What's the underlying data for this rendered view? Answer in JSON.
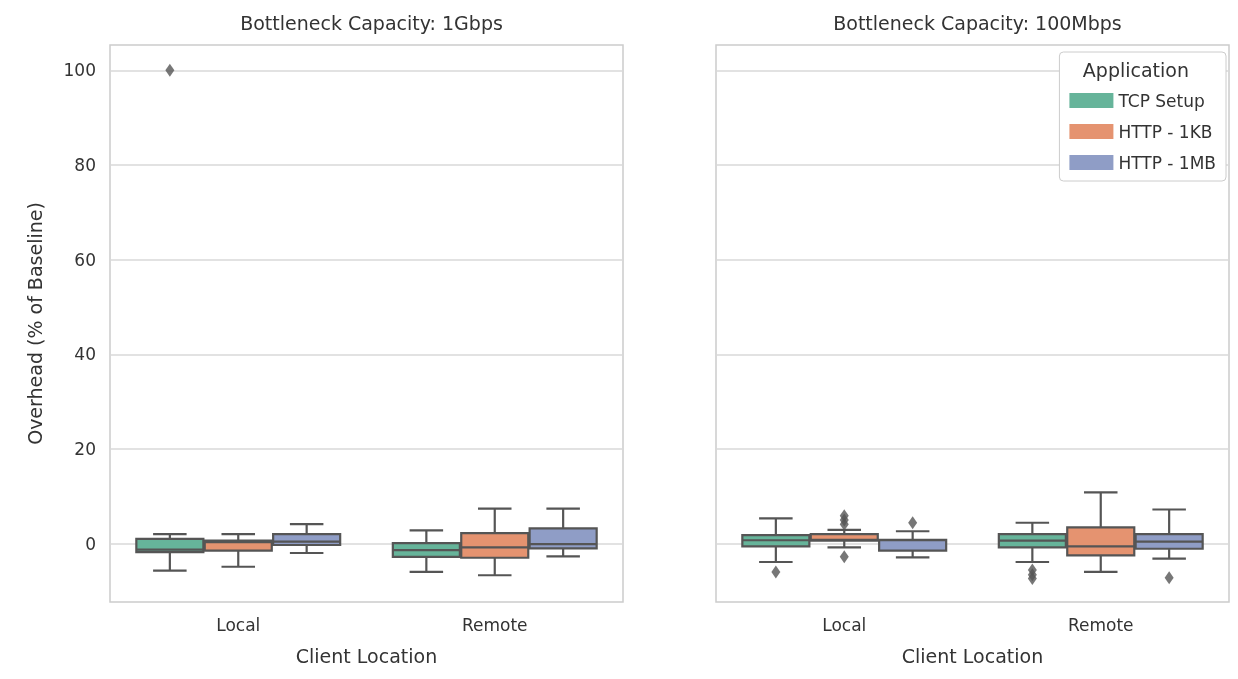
{
  "chart_data": [
    {
      "type": "box",
      "title": "Bottleneck Capacity: 1Gbps",
      "xlabel": "Client Location",
      "ylabel": "Overhead (% of Baseline)",
      "categories": [
        "Local",
        "Remote"
      ],
      "ylim": [
        -12.35,
        105.35
      ],
      "yticks": [
        0,
        20,
        40,
        60,
        80,
        100
      ],
      "grid": "y",
      "marker": "diamond",
      "series": [
        {
          "color": "#66b49a",
          "boxes": [
            {
              "low": -5.7,
              "q1": -1.8,
              "median": -1.3,
              "q3": 1.0,
              "high": 2.0,
              "outliers": [
                100
              ]
            },
            {
              "low": -6.0,
              "q1": -2.8,
              "median": -1.4,
              "q3": 0.1,
              "high": 2.8
            }
          ]
        },
        {
          "color": "#e59370",
          "boxes": [
            {
              "low": -4.9,
              "q1": -1.5,
              "median": 0.3,
              "q3": 0.6,
              "high": 2.0
            },
            {
              "low": -6.7,
              "q1": -3.0,
              "median": -0.8,
              "q3": 2.2,
              "high": 7.4
            }
          ]
        },
        {
          "color": "#8f9dc6",
          "boxes": [
            {
              "low": -2.0,
              "q1": -0.3,
              "median": 0.4,
              "q3": 2.0,
              "high": 4.1
            },
            {
              "low": -2.7,
              "q1": -1.0,
              "median": -0.1,
              "q3": 3.2,
              "high": 7.4
            }
          ]
        }
      ]
    },
    {
      "type": "box",
      "title": "Bottleneck Capacity: 100Mbps",
      "xlabel": "Client Location",
      "categories": [
        "Local",
        "Remote"
      ],
      "ylim": [
        -12.35,
        105.35
      ],
      "yticks": [
        0,
        20,
        40,
        60,
        80,
        100
      ],
      "grid": "y",
      "marker": "diamond",
      "tick_labels": "x",
      "legend": "top right",
      "legend_title": "Application",
      "series": [
        {
          "name": "TCP Setup",
          "color": "#66b49a",
          "boxes": [
            {
              "low": -3.9,
              "q1": -0.6,
              "median": 0.7,
              "q3": 1.8,
              "high": 5.3,
              "outliers": [
                -6.0
              ]
            },
            {
              "low": -3.9,
              "q1": -0.8,
              "median": 0.6,
              "q3": 2.0,
              "high": 4.4,
              "outliers": [
                -5.6,
                -6.6,
                -7.4
              ]
            }
          ]
        },
        {
          "name": "HTTP - 1KB",
          "color": "#e59370",
          "boxes": [
            {
              "low": -0.8,
              "q1": 0.6,
              "median": 0.8,
              "q3": 2.0,
              "high": 2.9,
              "outliers": [
                5.9,
                5.0,
                4.1,
                -2.8
              ]
            },
            {
              "low": -6.0,
              "q1": -2.5,
              "median": -0.6,
              "q3": 3.4,
              "high": 10.8
            }
          ]
        },
        {
          "name": "HTTP - 1MB",
          "color": "#8f9dc6",
          "boxes": [
            {
              "low": -2.9,
              "q1": -1.5,
              "median": 0.7,
              "q3": 0.8,
              "high": 2.6,
              "outliers": [
                4.4
              ]
            },
            {
              "low": -3.2,
              "q1": -1.1,
              "median": 0.4,
              "q3": 2.0,
              "high": 7.2,
              "outliers": [
                -7.2
              ]
            }
          ]
        }
      ]
    }
  ]
}
